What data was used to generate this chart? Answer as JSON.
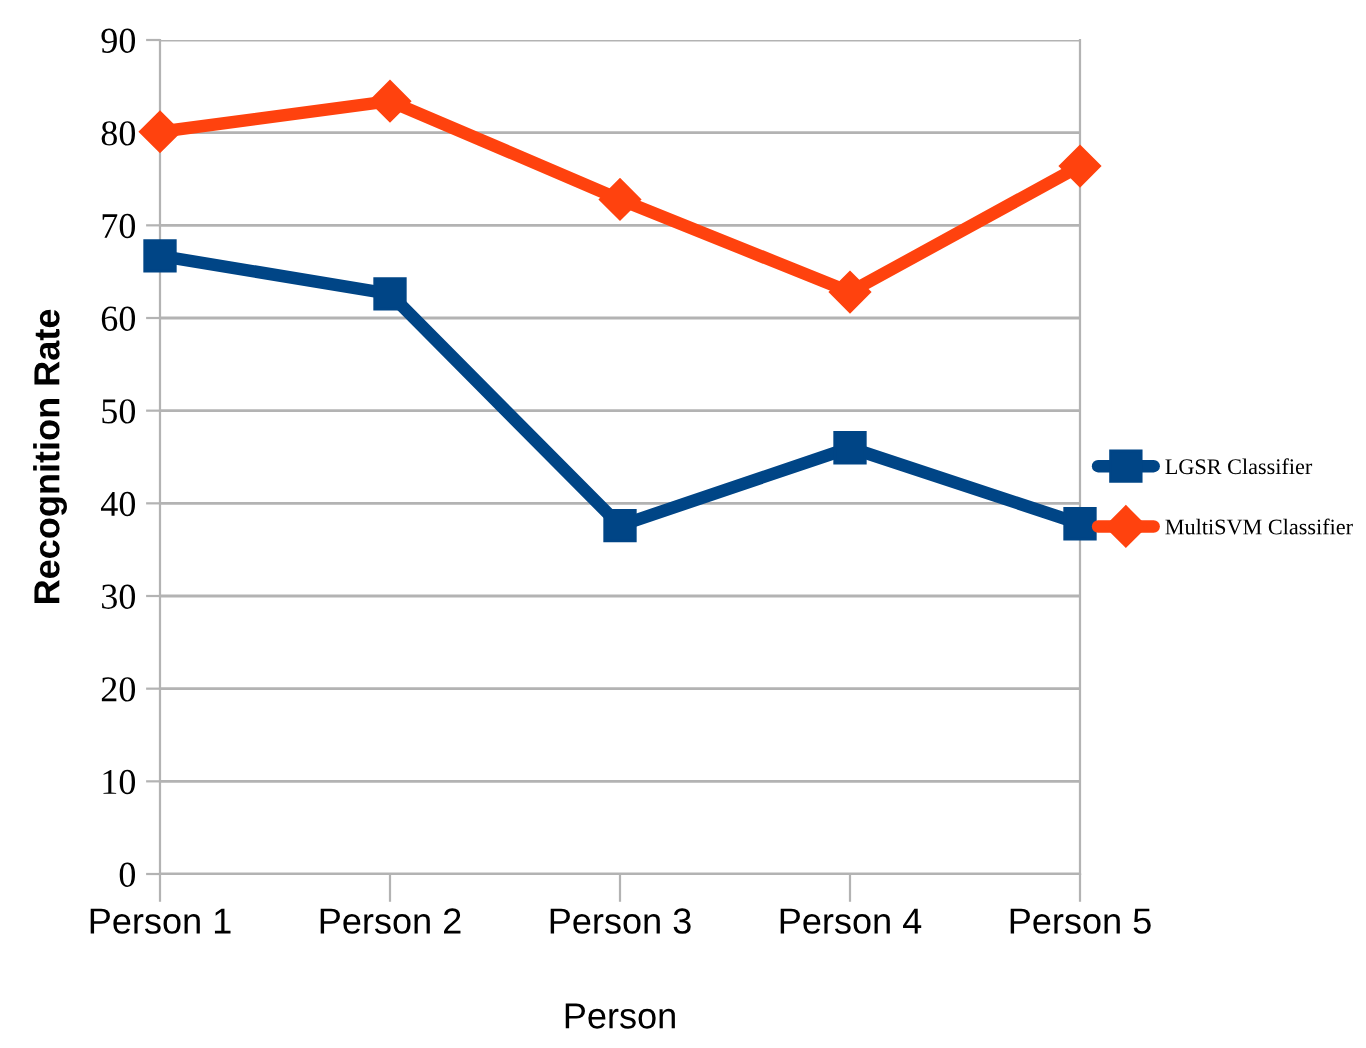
{
  "chart_data": {
    "type": "line",
    "xlabel": "Person",
    "ylabel": "Recognition Rate",
    "categories": [
      "Person 1",
      "Person 2",
      "Person 3",
      "Person 4",
      "Person 5"
    ],
    "series": [
      {
        "name": "LGSR Classifier",
        "color": "#004586",
        "marker": "square",
        "values": [
          66.7,
          62.6,
          37.6,
          46,
          37.8
        ]
      },
      {
        "name": "MultiSVM Classifier",
        "color": "#ff420e",
        "marker": "diamond",
        "values": [
          80.1,
          83.4,
          72.8,
          62.8,
          76.4
        ]
      }
    ],
    "ylim": [
      0,
      90
    ],
    "yticks": [
      0,
      10,
      20,
      30,
      40,
      50,
      60,
      70,
      80,
      90
    ],
    "grid": "y",
    "legend": "right",
    "line_style": "solid"
  }
}
